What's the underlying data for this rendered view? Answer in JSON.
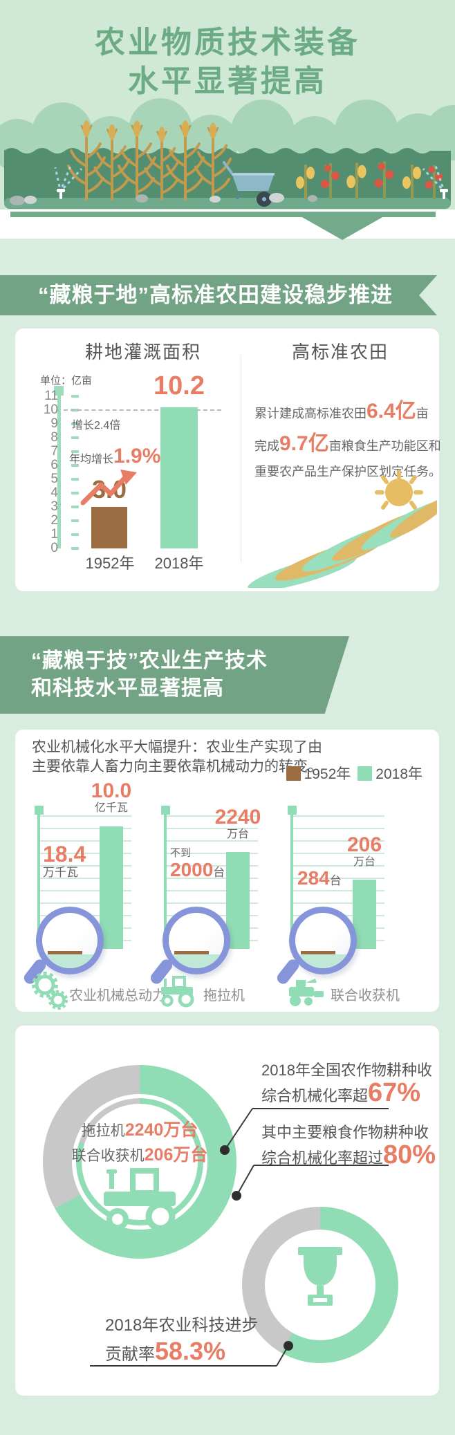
{
  "colors": {
    "mint": "#90dcb5",
    "brown": "#9b6b41",
    "coral": "#e87d66",
    "banner_green": "#72a385",
    "donut_gray": "#c8c8c8",
    "magnifier_blue": "#8695da"
  },
  "header": {
    "title_line1": "农业物质技术装备",
    "title_line2": "水平显著提高"
  },
  "section_land": {
    "banner": "“藏粮于地”高标准农田建设稳步推进",
    "left": {
      "title": "耕地灌溉面积",
      "unit": "单位：亿亩",
      "note_growth": "增长2.4倍",
      "note_annual_label": "年均增长",
      "note_annual_value": "1.9%",
      "bar1_label": "3.0",
      "bar2_label": "10.2",
      "x_label1": "1952年",
      "x_label2": "2018年"
    },
    "right": {
      "title": "高标准农田",
      "line1_prefix": "累计建成高标准农田",
      "line1_value": "6.4亿",
      "line1_suffix": "亩",
      "line2_prefix": "完成",
      "line2_value": "9.7亿",
      "line2_suffix": "亩粮食生产功能区和",
      "line3": "重要农产品生产保护区划定任务。"
    }
  },
  "section_tech": {
    "banner_line1": "“藏粮于技”农业生产技术",
    "banner_line2": "和科技水平显著提高",
    "intro_line1": "农业机械化水平大幅提升：农业生产实现了由",
    "intro_line2": "主要依靠人畜力向主要依靠机械动力的转变。",
    "legend": [
      {
        "label": "1952年"
      },
      {
        "label": "2018年"
      }
    ],
    "machines": [
      {
        "name": "农业机械总动力",
        "old_value": "18.4",
        "old_unit": "万千瓦",
        "new_value": "10.0",
        "new_unit": "亿千瓦"
      },
      {
        "name": "拖拉机",
        "old_prefix": "不到",
        "old_value": "2000",
        "old_unit": "台",
        "new_value": "2240",
        "new_unit": "万台"
      },
      {
        "name": "联合收获机",
        "old_value": "284",
        "old_unit": "台",
        "new_value": "206",
        "new_unit": "万台"
      }
    ]
  },
  "section_rate": {
    "donut1_line1_label": "拖拉机",
    "donut1_line1_value": "2240万台",
    "donut1_line2_label": "联合收获机",
    "donut1_line2_value": "206万台",
    "callout1_line1": "2018年全国农作物耕种收",
    "callout1_line2": "综合机械化率超",
    "callout1_value": "67%",
    "callout2_line1": "其中主要粮食作物耕种收",
    "callout2_line2": "综合机械化率超过",
    "callout2_value": "80%",
    "callout3_line1": "2018年农业科技进步",
    "callout3_line2": "贡献率",
    "callout3_value": "58.3%"
  },
  "chart_data": [
    {
      "type": "bar",
      "title": "耕地灌溉面积",
      "ylabel": "亿亩",
      "categories": [
        "1952年",
        "2018年"
      ],
      "values": [
        3.0,
        10.2
      ],
      "bar_colors": [
        "#9b6b41",
        "#90dcb5"
      ],
      "ylim": [
        0,
        11
      ],
      "y_ticks": [
        0,
        1,
        2,
        3,
        4,
        5,
        6,
        7,
        8,
        9,
        10,
        11
      ],
      "annotations": [
        "增长2.4倍",
        "年均增长1.9%"
      ],
      "grid": false
    },
    {
      "type": "bar",
      "title": "农业机械化水平大幅提升",
      "categories": [
        "农业机械总动力",
        "拖拉机",
        "联合收获机"
      ],
      "series": [
        {
          "name": "1952年",
          "values_text": [
            "18.4万千瓦",
            "不到2000台",
            "284台"
          ]
        },
        {
          "name": "2018年",
          "values_text": [
            "10.0亿千瓦",
            "2240万台",
            "206万台"
          ]
        }
      ],
      "display_bar_fracs": [
        0.92,
        0.73,
        0.52
      ],
      "legend_position": "top-right"
    },
    {
      "type": "pie",
      "title": "2018年全国农作物耕种收综合机械化率超67%",
      "labels": [
        "综合机械化率",
        "其他"
      ],
      "values": [
        67,
        33
      ],
      "inner_ring_pct": 80,
      "inner_ring_title": "其中主要粮食作物耕种收综合机械化率超过80%"
    },
    {
      "type": "pie",
      "title": "2018年农业科技进步贡献率58.3%",
      "labels": [
        "科技进步贡献率",
        "其他"
      ],
      "values": [
        58.3,
        41.7
      ]
    }
  ]
}
